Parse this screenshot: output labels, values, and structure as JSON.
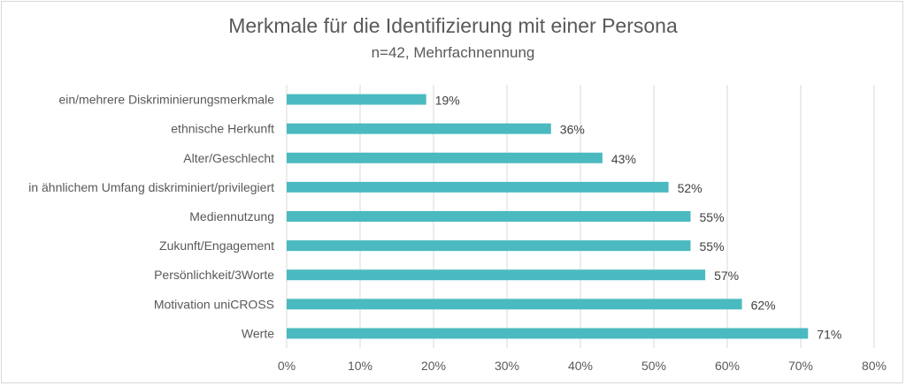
{
  "chart_data": {
    "type": "bar",
    "orientation": "horizontal",
    "title": "Merkmale für die Identifizierung mit einer Persona",
    "subtitle": "n=42, Mehrfachnennung",
    "categories": [
      "ein/mehrere Diskriminierungsmerkmale",
      "ethnische Herkunft",
      "Alter/Geschlecht",
      "in ähnlichem Umfang diskriminiert/privilegiert",
      "Mediennutzung",
      "Zukunft/Engagement",
      "Persönlichkeit/3Worte",
      "Motivation uniCROSS",
      "Werte"
    ],
    "values": [
      19,
      36,
      43,
      52,
      55,
      55,
      57,
      62,
      71
    ],
    "data_labels": [
      "19%",
      "36%",
      "43%",
      "52%",
      "55%",
      "55%",
      "57%",
      "62%",
      "71%"
    ],
    "xlim": [
      0,
      80
    ],
    "x_ticks": [
      "0%",
      "10%",
      "20%",
      "30%",
      "40%",
      "50%",
      "60%",
      "70%",
      "80%"
    ],
    "grid": "vertical",
    "bar_color": "#4bbac0",
    "legend": "none"
  }
}
